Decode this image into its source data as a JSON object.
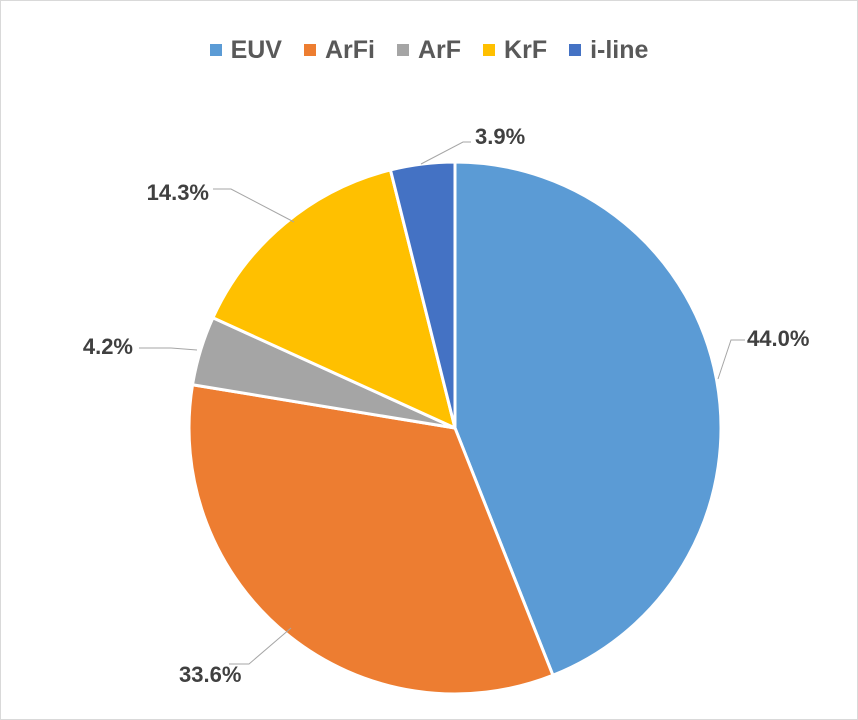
{
  "chart_data": {
    "type": "pie",
    "title": "",
    "legend_position": "top",
    "categories": [
      "EUV",
      "ArFi",
      "ArF",
      "KrF",
      "i-line"
    ],
    "values": [
      44.0,
      33.6,
      4.2,
      14.3,
      3.9
    ],
    "data_labels": [
      "44.0%",
      "33.6%",
      "4.2%",
      "14.3%",
      "3.9%"
    ],
    "colors": [
      "#5B9BD5",
      "#ED7D31",
      "#A5A5A5",
      "#FFC000",
      "#4472C4"
    ]
  }
}
